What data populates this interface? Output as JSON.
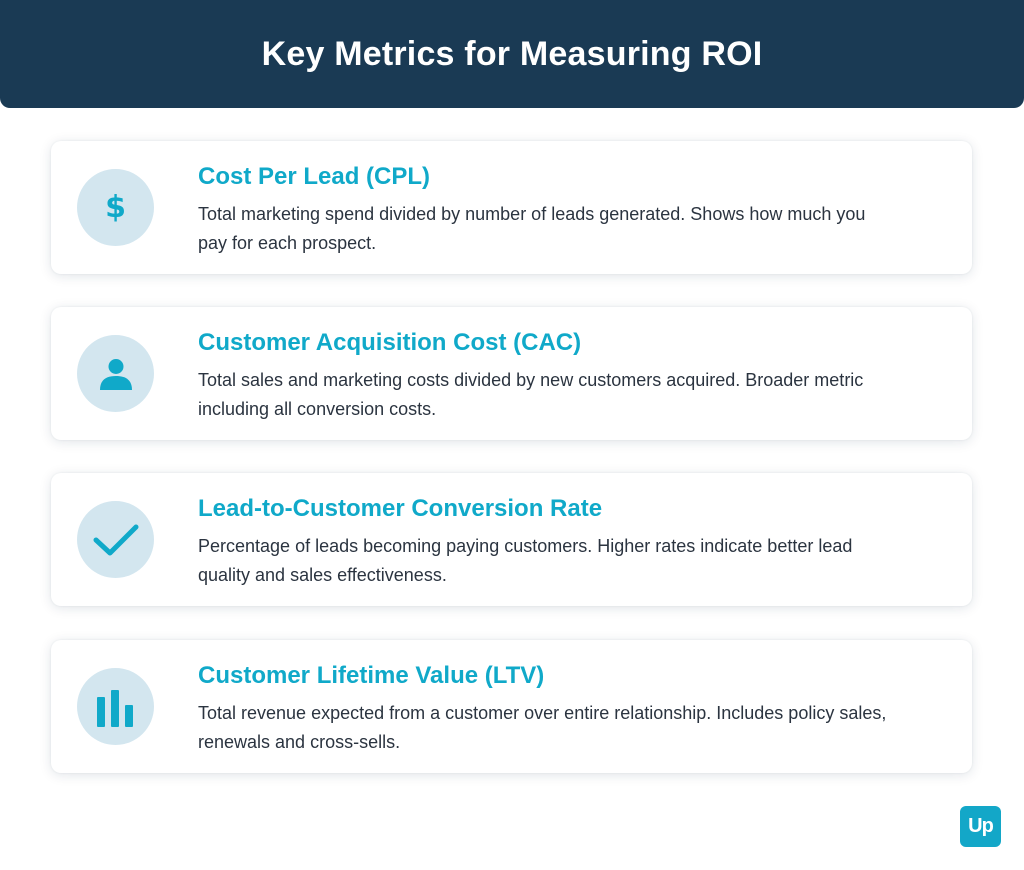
{
  "header": {
    "title": "Key Metrics for Measuring ROI"
  },
  "colors": {
    "header_bg": "#1a3a54",
    "accent": "#10a9c9",
    "icon_bg": "#d3e6ef",
    "text": "#2b3440"
  },
  "metrics": [
    {
      "icon": "dollar-icon",
      "title": "Cost Per Lead (CPL)",
      "description": "Total marketing spend divided by number of leads generated. Shows how much you pay for each prospect."
    },
    {
      "icon": "person-icon",
      "title": "Customer Acquisition Cost (CAC)",
      "description": "Total sales and marketing costs divided by new customers acquired. Broader metric including all conversion costs."
    },
    {
      "icon": "checkmark-icon",
      "title": "Lead-to-Customer Conversion Rate",
      "description": "Percentage of leads becoming paying customers. Higher rates indicate better lead quality and sales effectiveness."
    },
    {
      "icon": "bar-chart-icon",
      "title": "Customer Lifetime Value (LTV)",
      "description": "Total revenue expected from a customer over entire relationship. Includes policy sales, renewals and cross-sells."
    }
  ],
  "logo": {
    "text": "Up"
  }
}
